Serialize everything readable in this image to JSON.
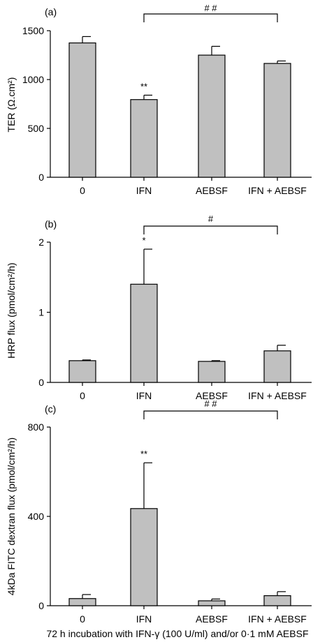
{
  "chart_data": [
    {
      "type": "bar",
      "panel_label": "(a)",
      "categories": [
        "0",
        "IFN",
        "AEBSF",
        "IFN + AEBSF"
      ],
      "values": [
        1375,
        795,
        1250,
        1165
      ],
      "errors": [
        65,
        45,
        90,
        25
      ],
      "bar_annotations": [
        "",
        "**",
        "",
        ""
      ],
      "bracket": {
        "from": 1,
        "to": 3,
        "label": "# #"
      },
      "ylabel": "TER (Ω.cm²)",
      "ylim": [
        0,
        1500
      ],
      "yticks": [
        0,
        500,
        1000,
        1500
      ],
      "bar_color": "#c0c0c0"
    },
    {
      "type": "bar",
      "panel_label": "(b)",
      "categories": [
        "0",
        "IFN",
        "AEBSF",
        "IFN + AEBSF"
      ],
      "values": [
        0.31,
        1.4,
        0.3,
        0.45
      ],
      "errors": [
        0.01,
        0.5,
        0.01,
        0.08
      ],
      "bar_annotations": [
        "",
        "*",
        "",
        ""
      ],
      "bracket": {
        "from": 1,
        "to": 3,
        "label": "#"
      },
      "ylabel": "HRP flux (pmol/cm²/h)",
      "ylim": [
        0,
        2
      ],
      "yticks": [
        0,
        1,
        2
      ],
      "bar_color": "#c0c0c0"
    },
    {
      "type": "bar",
      "panel_label": "(c)",
      "categories": [
        "0",
        "IFN",
        "AEBSF",
        "IFN + AEBSF"
      ],
      "values": [
        32,
        435,
        22,
        45
      ],
      "errors": [
        18,
        205,
        8,
        18
      ],
      "bar_annotations": [
        "",
        "**",
        "",
        ""
      ],
      "bracket": {
        "from": 1,
        "to": 3,
        "label": "# #"
      },
      "ylabel": "4kDa FITC dextran flux (pmol/cm²/h)",
      "ylim": [
        0,
        800
      ],
      "yticks": [
        0,
        400,
        800
      ],
      "bar_color": "#c0c0c0"
    }
  ],
  "xlabel": "72 h incubation with IFN-γ (100 U/ml) and/or 0·1 mM AEBSF"
}
